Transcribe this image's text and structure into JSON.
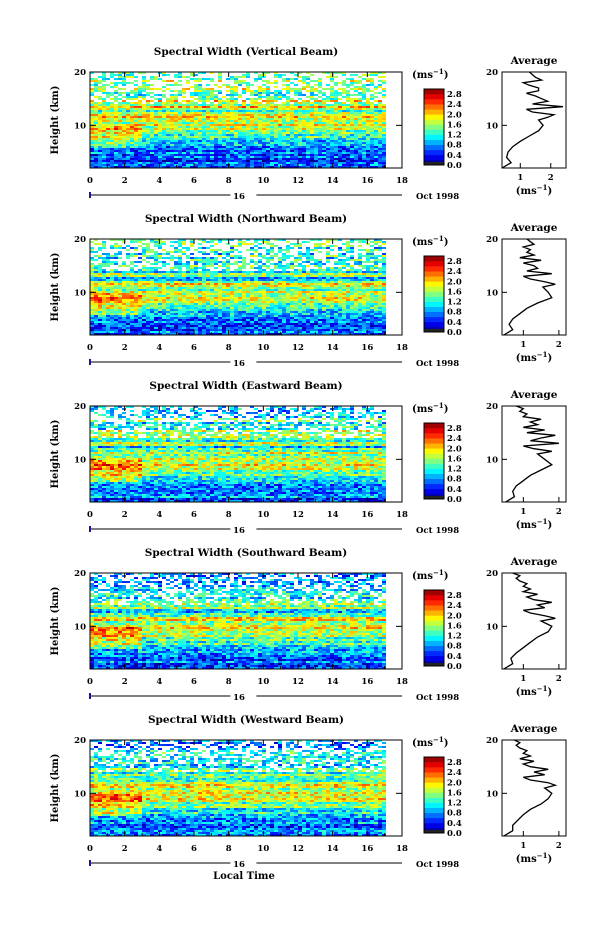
{
  "figure": {
    "time_label": "Local Time",
    "unit_label": "(ms",
    "unit_exponent": "−1",
    "date_suffix": "Oct 1998",
    "day_marker": "16",
    "avg_title": "Average"
  },
  "chart_data": [
    {
      "type": "heatmap",
      "title": "Spectral Width (Vertical Beam)",
      "xlabel": "",
      "ylabel": "Height (km)",
      "xlim": [
        0,
        18
      ],
      "ylim": [
        2,
        20
      ],
      "x_ticks": [
        "0",
        "2",
        "4",
        "6",
        "8",
        "10",
        "12",
        "14",
        "16",
        "18"
      ],
      "y_ticks": [
        "20",
        "10"
      ],
      "colorbar": {
        "label": "(ms-1)",
        "ticks": [
          "2.8",
          "2.4",
          "2.0",
          "1.6",
          "1.2",
          "0.8",
          "0.4",
          "0.0"
        ],
        "range": [
          0,
          3.0
        ]
      },
      "height_profile": [
        [
          2,
          0.4
        ],
        [
          3,
          0.7
        ],
        [
          4,
          0.55
        ],
        [
          5,
          0.6
        ],
        [
          6,
          0.75
        ],
        [
          7,
          1.0
        ],
        [
          8,
          1.3
        ],
        [
          9,
          1.6
        ],
        [
          10,
          1.75
        ],
        [
          11,
          1.6
        ],
        [
          12,
          2.1
        ],
        [
          13,
          1.2
        ],
        [
          13.5,
          2.4
        ],
        [
          14,
          1.4
        ],
        [
          15,
          1.7
        ],
        [
          16,
          1.2
        ],
        [
          17,
          1.6
        ],
        [
          18,
          1.1
        ],
        [
          19,
          1.5
        ],
        [
          20,
          1.3
        ]
      ],
      "profile": {
        "title": "Average",
        "xlabel": "(ms-1)",
        "x_ticks": [
          "1",
          "2"
        ],
        "xlim": [
          0.4,
          2.5
        ],
        "ylim": [
          2,
          20
        ],
        "y_ticks": [
          "20",
          "10"
        ],
        "height": [
          2,
          3,
          4,
          5,
          6,
          7,
          8,
          9,
          10,
          11,
          11.5,
          12,
          12.5,
          13,
          13.5,
          14,
          14.5,
          15,
          15.5,
          16,
          16.5,
          17,
          17.5,
          18,
          18.5,
          19,
          19.5,
          20
        ],
        "width": [
          0.4,
          0.7,
          0.55,
          0.6,
          0.75,
          1.0,
          1.3,
          1.6,
          1.75,
          1.6,
          1.9,
          2.1,
          1.4,
          1.2,
          2.4,
          1.4,
          1.9,
          1.7,
          1.5,
          1.2,
          1.6,
          1.6,
          1.3,
          1.1,
          1.7,
          1.5,
          1.4,
          1.3
        ]
      }
    },
    {
      "type": "heatmap",
      "title": "Spectral Width (Northward Beam)",
      "xlabel": "",
      "ylabel": "Height (km)",
      "xlim": [
        0,
        18
      ],
      "ylim": [
        2,
        20
      ],
      "x_ticks": [
        "0",
        "2",
        "4",
        "6",
        "8",
        "10",
        "12",
        "14",
        "16",
        "18"
      ],
      "y_ticks": [
        "20",
        "10"
      ],
      "colorbar": {
        "label": "(ms-1)",
        "ticks": [
          "2.8",
          "2.4",
          "2.0",
          "1.6",
          "1.2",
          "0.8",
          "0.4",
          "0.0"
        ],
        "range": [
          0,
          3.0
        ]
      },
      "profile": {
        "title": "Average",
        "xlabel": "(ms-1)",
        "x_ticks": [
          "1",
          "2"
        ],
        "xlim": [
          0.4,
          2.2
        ],
        "ylim": [
          2,
          20
        ],
        "y_ticks": [
          "20",
          "10"
        ],
        "height": [
          2,
          3,
          4,
          5,
          6,
          7,
          8,
          9,
          10,
          11,
          11.5,
          12,
          12.5,
          13,
          13.5,
          14,
          14.5,
          15,
          15.5,
          16,
          16.5,
          17,
          17.5,
          18,
          18.5,
          19,
          19.5,
          20
        ],
        "width": [
          0.45,
          0.7,
          0.6,
          0.7,
          0.9,
          1.1,
          1.4,
          1.8,
          1.7,
          1.55,
          1.9,
          1.6,
          1.2,
          1.0,
          1.8,
          1.1,
          1.4,
          1.3,
          1.0,
          1.5,
          0.9,
          1.3,
          1.1,
          1.2,
          1.0,
          1.3,
          1.2,
          1.1
        ]
      }
    },
    {
      "type": "heatmap",
      "title": "Spectral Width (Eastward Beam)",
      "xlabel": "",
      "ylabel": "Height (km)",
      "xlim": [
        0,
        18
      ],
      "ylim": [
        2,
        20
      ],
      "x_ticks": [
        "0",
        "2",
        "4",
        "6",
        "8",
        "10",
        "12",
        "14",
        "16",
        "18"
      ],
      "y_ticks": [
        "20",
        "10"
      ],
      "colorbar": {
        "label": "(ms-1)",
        "ticks": [
          "2.8",
          "2.4",
          "2.0",
          "1.6",
          "1.2",
          "0.8",
          "0.4",
          "0.0"
        ],
        "range": [
          0,
          3.0
        ]
      },
      "profile": {
        "title": "Average",
        "xlabel": "(ms-1)",
        "x_ticks": [
          "1",
          "2"
        ],
        "xlim": [
          0.4,
          2.2
        ],
        "ylim": [
          2,
          20
        ],
        "y_ticks": [
          "20",
          "10"
        ],
        "height": [
          2,
          3,
          4,
          5,
          6,
          7,
          8,
          9,
          10,
          11,
          11.5,
          12,
          12.5,
          13,
          13.5,
          14,
          14.5,
          15,
          15.5,
          16,
          16.5,
          17,
          17.5,
          18,
          18.5,
          19,
          19.5,
          20
        ],
        "width": [
          0.5,
          0.75,
          0.7,
          0.8,
          1.0,
          1.2,
          1.5,
          1.8,
          1.6,
          1.4,
          1.8,
          1.3,
          1.0,
          2.0,
          1.2,
          1.5,
          1.9,
          1.1,
          1.6,
          1.0,
          1.4,
          1.2,
          1.5,
          1.0,
          1.1,
          0.9,
          1.0,
          0.8
        ]
      }
    },
    {
      "type": "heatmap",
      "title": "Spectral Width (Southward Beam)",
      "xlabel": "",
      "ylabel": "Height (km)",
      "xlim": [
        0,
        18
      ],
      "ylim": [
        2,
        20
      ],
      "x_ticks": [
        "0",
        "2",
        "4",
        "6",
        "8",
        "10",
        "12",
        "14",
        "16",
        "18"
      ],
      "y_ticks": [
        "20",
        "10"
      ],
      "colorbar": {
        "label": "(ms-1)",
        "ticks": [
          "2.8",
          "2.4",
          "2.0",
          "1.6",
          "1.2",
          "0.8",
          "0.4",
          "0.0"
        ],
        "range": [
          0,
          3.0
        ]
      },
      "profile": {
        "title": "Average",
        "xlabel": "(ms-1)",
        "x_ticks": [
          "1",
          "2"
        ],
        "xlim": [
          0.4,
          2.2
        ],
        "ylim": [
          2,
          20
        ],
        "y_ticks": [
          "20",
          "10"
        ],
        "height": [
          2,
          3,
          4,
          5,
          6,
          7,
          8,
          9,
          10,
          11,
          11.5,
          12,
          12.5,
          13,
          13.5,
          14,
          14.5,
          15,
          15.5,
          16,
          16.5,
          17,
          17.5,
          18,
          18.5,
          19,
          19.5,
          20
        ],
        "width": [
          0.45,
          0.7,
          0.65,
          0.8,
          1.0,
          1.2,
          1.4,
          1.7,
          1.8,
          1.5,
          1.9,
          1.6,
          1.2,
          1.0,
          1.6,
          1.4,
          1.8,
          1.3,
          1.1,
          1.4,
          1.0,
          1.2,
          1.0,
          1.1,
          0.9,
          0.8,
          0.9,
          0.7
        ]
      }
    },
    {
      "type": "heatmap",
      "title": "Spectral Width (Westward Beam)",
      "xlabel": "Local Time",
      "ylabel": "Height (km)",
      "xlim": [
        0,
        18
      ],
      "ylim": [
        2,
        20
      ],
      "x_ticks": [
        "0",
        "2",
        "4",
        "6",
        "8",
        "10",
        "12",
        "14",
        "16",
        "18"
      ],
      "y_ticks": [
        "20",
        "10"
      ],
      "colorbar": {
        "label": "(ms-1)",
        "ticks": [
          "2.8",
          "2.4",
          "2.0",
          "1.6",
          "1.2",
          "0.8",
          "0.4",
          "0.0"
        ],
        "range": [
          0,
          3.0
        ]
      },
      "profile": {
        "title": "Average",
        "xlabel": "(ms-1)",
        "x_ticks": [
          "1",
          "2"
        ],
        "xlim": [
          0.4,
          2.2
        ],
        "ylim": [
          2,
          20
        ],
        "y_ticks": [
          "20",
          "10"
        ],
        "height": [
          2,
          3,
          4,
          5,
          6,
          7,
          8,
          9,
          10,
          11,
          11.5,
          12,
          12.5,
          13,
          13.5,
          14,
          14.5,
          15,
          15.5,
          16,
          16.5,
          17,
          17.5,
          18,
          18.5,
          19,
          19.5,
          20
        ],
        "width": [
          0.45,
          0.7,
          0.7,
          0.85,
          1.0,
          1.2,
          1.5,
          1.7,
          1.8,
          1.6,
          1.9,
          1.7,
          1.2,
          1.0,
          1.6,
          1.3,
          1.7,
          1.2,
          1.0,
          1.3,
          0.9,
          1.2,
          1.0,
          1.1,
          0.9,
          0.8,
          0.9,
          0.75
        ]
      }
    }
  ]
}
